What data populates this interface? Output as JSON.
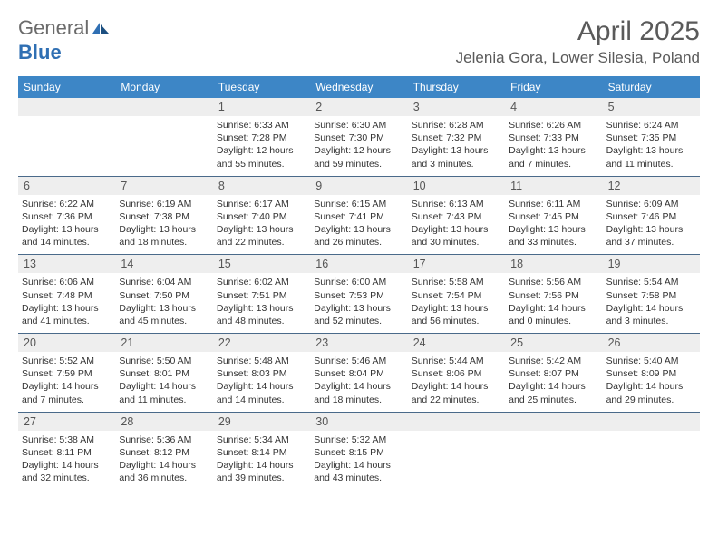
{
  "brand": {
    "general": "General",
    "blue": "Blue"
  },
  "title": "April 2025",
  "location": "Jelenia Gora, Lower Silesia, Poland",
  "colors": {
    "header_bg": "#3d86c6",
    "daynum_bg": "#eeeeee",
    "week_border": "#4a6a8a",
    "text": "#333333",
    "muted": "#5a5a5a"
  },
  "dayNames": [
    "Sunday",
    "Monday",
    "Tuesday",
    "Wednesday",
    "Thursday",
    "Friday",
    "Saturday"
  ],
  "weeks": [
    [
      {
        "n": "",
        "sunrise": "",
        "sunset": "",
        "daylight": ""
      },
      {
        "n": "",
        "sunrise": "",
        "sunset": "",
        "daylight": ""
      },
      {
        "n": "1",
        "sunrise": "Sunrise: 6:33 AM",
        "sunset": "Sunset: 7:28 PM",
        "daylight": "Daylight: 12 hours and 55 minutes."
      },
      {
        "n": "2",
        "sunrise": "Sunrise: 6:30 AM",
        "sunset": "Sunset: 7:30 PM",
        "daylight": "Daylight: 12 hours and 59 minutes."
      },
      {
        "n": "3",
        "sunrise": "Sunrise: 6:28 AM",
        "sunset": "Sunset: 7:32 PM",
        "daylight": "Daylight: 13 hours and 3 minutes."
      },
      {
        "n": "4",
        "sunrise": "Sunrise: 6:26 AM",
        "sunset": "Sunset: 7:33 PM",
        "daylight": "Daylight: 13 hours and 7 minutes."
      },
      {
        "n": "5",
        "sunrise": "Sunrise: 6:24 AM",
        "sunset": "Sunset: 7:35 PM",
        "daylight": "Daylight: 13 hours and 11 minutes."
      }
    ],
    [
      {
        "n": "6",
        "sunrise": "Sunrise: 6:22 AM",
        "sunset": "Sunset: 7:36 PM",
        "daylight": "Daylight: 13 hours and 14 minutes."
      },
      {
        "n": "7",
        "sunrise": "Sunrise: 6:19 AM",
        "sunset": "Sunset: 7:38 PM",
        "daylight": "Daylight: 13 hours and 18 minutes."
      },
      {
        "n": "8",
        "sunrise": "Sunrise: 6:17 AM",
        "sunset": "Sunset: 7:40 PM",
        "daylight": "Daylight: 13 hours and 22 minutes."
      },
      {
        "n": "9",
        "sunrise": "Sunrise: 6:15 AM",
        "sunset": "Sunset: 7:41 PM",
        "daylight": "Daylight: 13 hours and 26 minutes."
      },
      {
        "n": "10",
        "sunrise": "Sunrise: 6:13 AM",
        "sunset": "Sunset: 7:43 PM",
        "daylight": "Daylight: 13 hours and 30 minutes."
      },
      {
        "n": "11",
        "sunrise": "Sunrise: 6:11 AM",
        "sunset": "Sunset: 7:45 PM",
        "daylight": "Daylight: 13 hours and 33 minutes."
      },
      {
        "n": "12",
        "sunrise": "Sunrise: 6:09 AM",
        "sunset": "Sunset: 7:46 PM",
        "daylight": "Daylight: 13 hours and 37 minutes."
      }
    ],
    [
      {
        "n": "13",
        "sunrise": "Sunrise: 6:06 AM",
        "sunset": "Sunset: 7:48 PM",
        "daylight": "Daylight: 13 hours and 41 minutes."
      },
      {
        "n": "14",
        "sunrise": "Sunrise: 6:04 AM",
        "sunset": "Sunset: 7:50 PM",
        "daylight": "Daylight: 13 hours and 45 minutes."
      },
      {
        "n": "15",
        "sunrise": "Sunrise: 6:02 AM",
        "sunset": "Sunset: 7:51 PM",
        "daylight": "Daylight: 13 hours and 48 minutes."
      },
      {
        "n": "16",
        "sunrise": "Sunrise: 6:00 AM",
        "sunset": "Sunset: 7:53 PM",
        "daylight": "Daylight: 13 hours and 52 minutes."
      },
      {
        "n": "17",
        "sunrise": "Sunrise: 5:58 AM",
        "sunset": "Sunset: 7:54 PM",
        "daylight": "Daylight: 13 hours and 56 minutes."
      },
      {
        "n": "18",
        "sunrise": "Sunrise: 5:56 AM",
        "sunset": "Sunset: 7:56 PM",
        "daylight": "Daylight: 14 hours and 0 minutes."
      },
      {
        "n": "19",
        "sunrise": "Sunrise: 5:54 AM",
        "sunset": "Sunset: 7:58 PM",
        "daylight": "Daylight: 14 hours and 3 minutes."
      }
    ],
    [
      {
        "n": "20",
        "sunrise": "Sunrise: 5:52 AM",
        "sunset": "Sunset: 7:59 PM",
        "daylight": "Daylight: 14 hours and 7 minutes."
      },
      {
        "n": "21",
        "sunrise": "Sunrise: 5:50 AM",
        "sunset": "Sunset: 8:01 PM",
        "daylight": "Daylight: 14 hours and 11 minutes."
      },
      {
        "n": "22",
        "sunrise": "Sunrise: 5:48 AM",
        "sunset": "Sunset: 8:03 PM",
        "daylight": "Daylight: 14 hours and 14 minutes."
      },
      {
        "n": "23",
        "sunrise": "Sunrise: 5:46 AM",
        "sunset": "Sunset: 8:04 PM",
        "daylight": "Daylight: 14 hours and 18 minutes."
      },
      {
        "n": "24",
        "sunrise": "Sunrise: 5:44 AM",
        "sunset": "Sunset: 8:06 PM",
        "daylight": "Daylight: 14 hours and 22 minutes."
      },
      {
        "n": "25",
        "sunrise": "Sunrise: 5:42 AM",
        "sunset": "Sunset: 8:07 PM",
        "daylight": "Daylight: 14 hours and 25 minutes."
      },
      {
        "n": "26",
        "sunrise": "Sunrise: 5:40 AM",
        "sunset": "Sunset: 8:09 PM",
        "daylight": "Daylight: 14 hours and 29 minutes."
      }
    ],
    [
      {
        "n": "27",
        "sunrise": "Sunrise: 5:38 AM",
        "sunset": "Sunset: 8:11 PM",
        "daylight": "Daylight: 14 hours and 32 minutes."
      },
      {
        "n": "28",
        "sunrise": "Sunrise: 5:36 AM",
        "sunset": "Sunset: 8:12 PM",
        "daylight": "Daylight: 14 hours and 36 minutes."
      },
      {
        "n": "29",
        "sunrise": "Sunrise: 5:34 AM",
        "sunset": "Sunset: 8:14 PM",
        "daylight": "Daylight: 14 hours and 39 minutes."
      },
      {
        "n": "30",
        "sunrise": "Sunrise: 5:32 AM",
        "sunset": "Sunset: 8:15 PM",
        "daylight": "Daylight: 14 hours and 43 minutes."
      },
      {
        "n": "",
        "sunrise": "",
        "sunset": "",
        "daylight": ""
      },
      {
        "n": "",
        "sunrise": "",
        "sunset": "",
        "daylight": ""
      },
      {
        "n": "",
        "sunrise": "",
        "sunset": "",
        "daylight": ""
      }
    ]
  ]
}
